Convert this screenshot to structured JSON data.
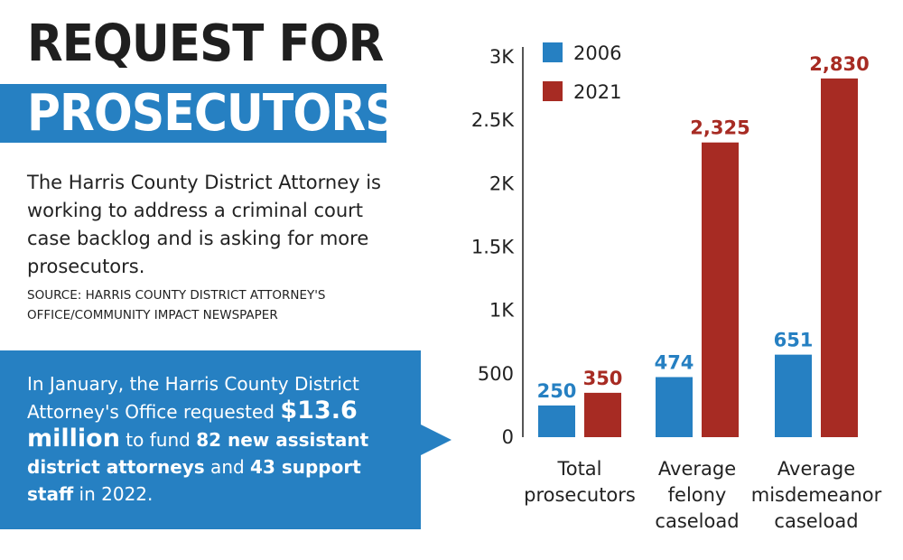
{
  "headline": {
    "line1": "REQUEST FOR",
    "line2": "PROSECUTORS"
  },
  "description": "The Harris County District Attorney is working to address a criminal court case backlog and is asking for more prosecutors.",
  "source": "SOURCE: HARRIS COUNTY DISTRICT ATTORNEY'S OFFICE/COMMUNITY IMPACT NEWSPAPER",
  "callout": {
    "part1": "In January, the Harris County District Attorney's Office requested ",
    "amount": "$13.6 million",
    "part2": " to fund ",
    "staff1": "82 new assistant district attorneys",
    "part3": " and ",
    "staff2": "43 support staff",
    "part4": " in 2022."
  },
  "colors": {
    "series_2006": "#2680c2",
    "series_2021": "#a72b23",
    "title_band": "#2680c2",
    "callout_bg": "#2680c2"
  },
  "chart_data": {
    "type": "bar",
    "categories": [
      [
        "Total",
        "prosecutors"
      ],
      [
        "Average",
        "felony",
        "caseload"
      ],
      [
        "Average",
        "misdemeanor",
        "caseload"
      ]
    ],
    "series": [
      {
        "name": "2006",
        "values": [
          250,
          474,
          651
        ],
        "labels": [
          "250",
          "474",
          "651"
        ]
      },
      {
        "name": "2021",
        "values": [
          350,
          2325,
          2830
        ],
        "labels": [
          "350",
          "2,325",
          "2,830"
        ]
      }
    ],
    "y_ticks": [
      0,
      500,
      1000,
      1500,
      2000,
      2500,
      3000
    ],
    "y_tick_labels": [
      "0",
      "500",
      "1K",
      "1.5K",
      "2K",
      "2.5K",
      "3K"
    ],
    "ylim": [
      0,
      3000
    ],
    "legend_position": "top-left",
    "grid": false
  }
}
